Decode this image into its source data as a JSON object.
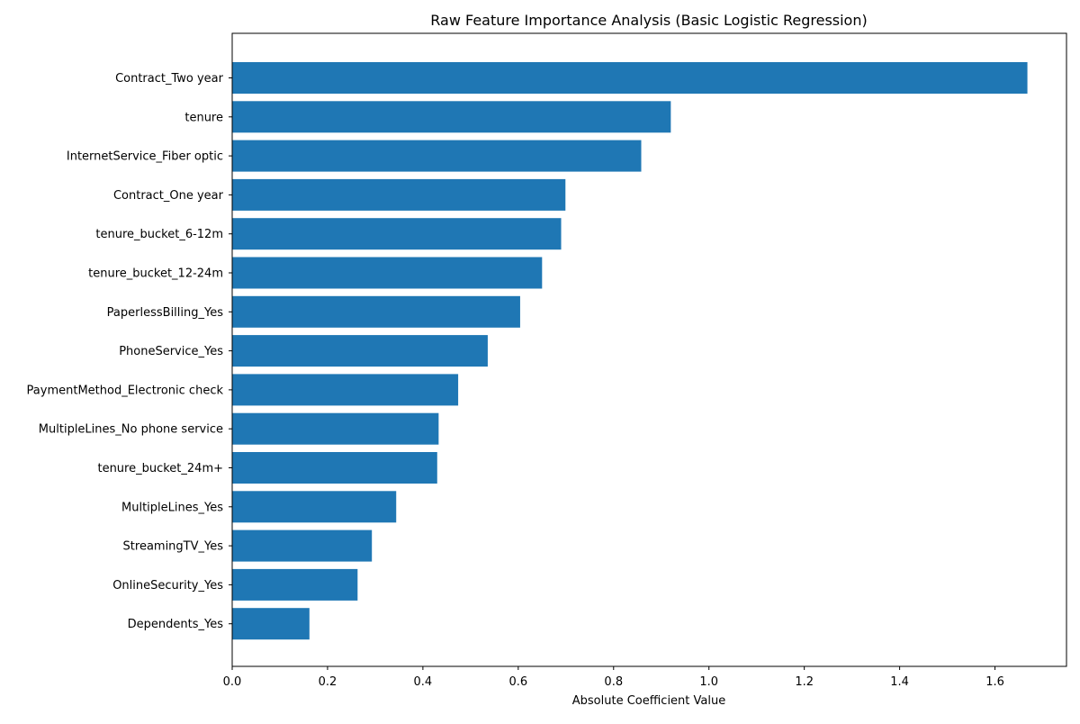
{
  "chart_data": {
    "type": "bar",
    "orientation": "horizontal",
    "title": "Raw Feature Importance Analysis (Basic Logistic Regression)",
    "xlabel": "Absolute Coefficient Value",
    "ylabel": "",
    "xlim": [
      0,
      1.75
    ],
    "xticks": [
      0.0,
      0.2,
      0.4,
      0.6,
      0.8,
      1.0,
      1.2,
      1.4,
      1.6
    ],
    "xtick_labels": [
      "0.0",
      "0.2",
      "0.4",
      "0.6",
      "0.8",
      "1.0",
      "1.2",
      "1.4",
      "1.6"
    ],
    "grid": false,
    "bar_color": "#1f77b4",
    "categories": [
      "Contract_Two year",
      "tenure",
      "InternetService_Fiber optic",
      "Contract_One year",
      "tenure_bucket_6-12m",
      "tenure_bucket_12-24m",
      "PaperlessBilling_Yes",
      "PhoneService_Yes",
      "PaymentMethod_Electronic check",
      "MultipleLines_No phone service",
      "tenure_bucket_24m+",
      "MultipleLines_Yes",
      "StreamingTV_Yes",
      "OnlineSecurity_Yes",
      "Dependents_Yes"
    ],
    "values": [
      1.668,
      0.92,
      0.858,
      0.699,
      0.69,
      0.65,
      0.604,
      0.536,
      0.474,
      0.433,
      0.43,
      0.344,
      0.293,
      0.263,
      0.162
    ]
  }
}
